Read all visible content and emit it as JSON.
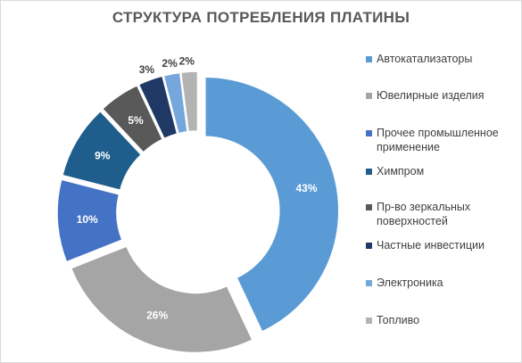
{
  "chart_data": {
    "type": "pie",
    "title": "СТРУКТУРА ПОТРЕБЛЕНИЯ ПЛАТИНЫ",
    "categories": [
      "Автокатализаторы",
      "Ювелирные изделия",
      "Прочее промышленное применение",
      "Химпром",
      "Пр-во зеркальных поверхностей",
      "Частные инвестиции",
      "Электроника",
      "Топливо"
    ],
    "values": [
      43,
      26,
      10,
      9,
      5,
      3,
      2,
      2
    ],
    "data_labels": [
      "43%",
      "26%",
      "10%",
      "9%",
      "5%",
      "3%",
      "2%",
      "2%"
    ],
    "colors": [
      "#5b9bd5",
      "#a5a5a5",
      "#4472c4",
      "#1f5e8c",
      "#595959",
      "#203864",
      "#76a7dc",
      "#b3b3b3"
    ],
    "label_colors": [
      "#ffffff",
      "#ffffff",
      "#ffffff",
      "#ffffff",
      "#ffffff",
      "#404040",
      "#404040",
      "#404040"
    ],
    "donut": true,
    "exploded": true,
    "legend_position": "right"
  }
}
